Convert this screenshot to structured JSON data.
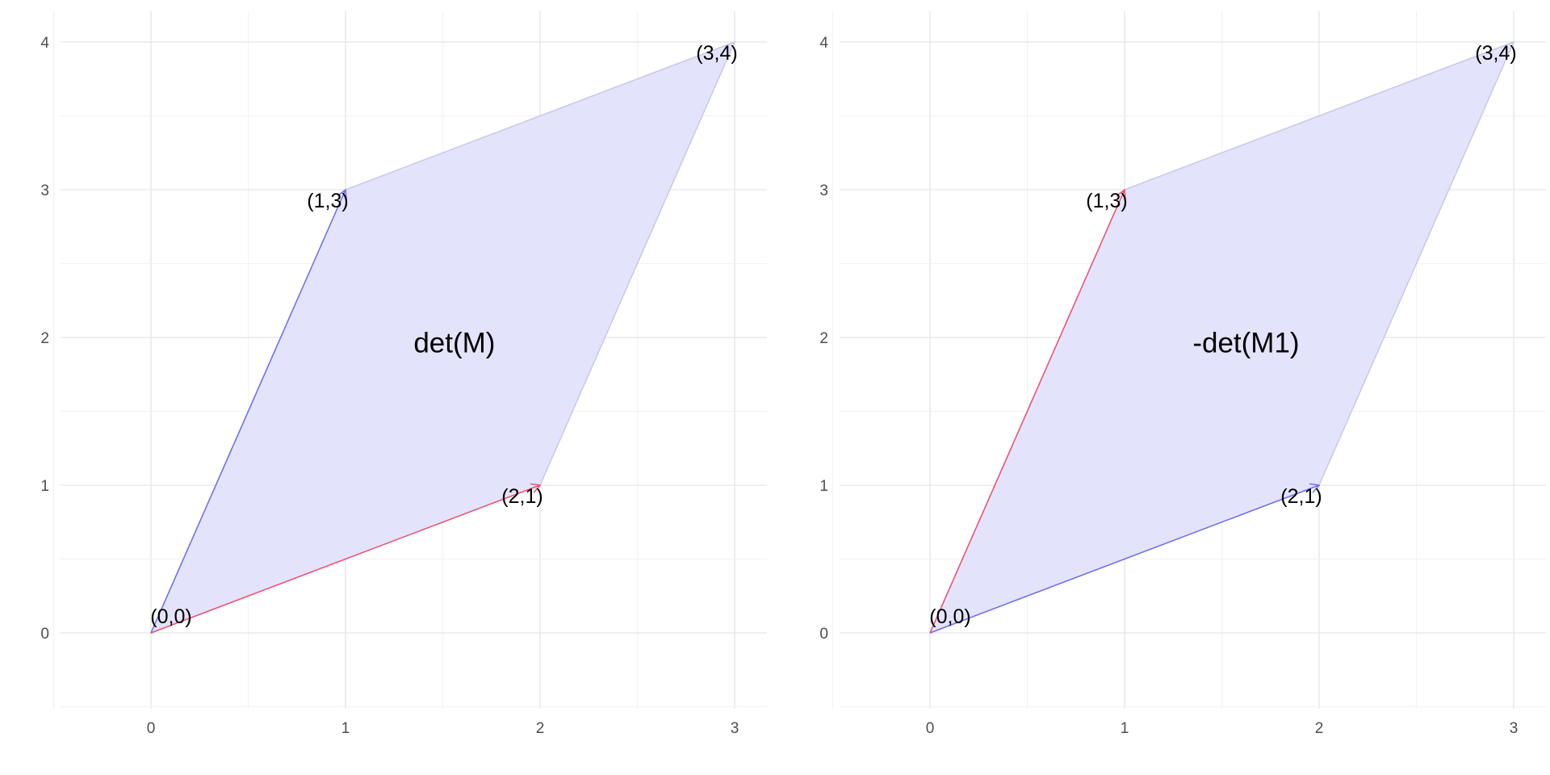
{
  "chart_data": [
    {
      "type": "vector-plot",
      "xlim": [
        -0.5,
        3.15
      ],
      "ylim": [
        -0.5,
        4.2
      ],
      "x_ticks": [
        "0",
        "1",
        "2",
        "3"
      ],
      "y_ticks": [
        "0",
        "1",
        "2",
        "3",
        "4"
      ],
      "grid": true,
      "parallelogram": [
        [
          0,
          0
        ],
        [
          2,
          1
        ],
        [
          3,
          4
        ],
        [
          1,
          3
        ]
      ],
      "fill_color": "#e3e3fb",
      "vectors": [
        {
          "from": [
            0,
            0
          ],
          "to": [
            2,
            1
          ],
          "color": "#f0506e"
        },
        {
          "from": [
            0,
            0
          ],
          "to": [
            1,
            3
          ],
          "color": "#6e6ef0"
        }
      ],
      "point_labels": [
        {
          "text": "(0,0)",
          "x": 0,
          "y": 0
        },
        {
          "text": "(2,1)",
          "x": 2,
          "y": 1
        },
        {
          "text": "(1,3)",
          "x": 1,
          "y": 3
        },
        {
          "text": "(3,4)",
          "x": 3,
          "y": 4
        }
      ],
      "area_label": {
        "text": "det(M)",
        "x": 1.35,
        "y": 1.9
      }
    },
    {
      "type": "vector-plot",
      "xlim": [
        -0.5,
        3.15
      ],
      "ylim": [
        -0.5,
        4.2
      ],
      "x_ticks": [
        "0",
        "1",
        "2",
        "3"
      ],
      "y_ticks": [
        "0",
        "1",
        "2",
        "3",
        "4"
      ],
      "grid": true,
      "parallelogram": [
        [
          0,
          0
        ],
        [
          2,
          1
        ],
        [
          3,
          4
        ],
        [
          1,
          3
        ]
      ],
      "fill_color": "#e3e3fb",
      "vectors": [
        {
          "from": [
            0,
            0
          ],
          "to": [
            2,
            1
          ],
          "color": "#6e6ef0"
        },
        {
          "from": [
            0,
            0
          ],
          "to": [
            1,
            3
          ],
          "color": "#f0506e"
        }
      ],
      "point_labels": [
        {
          "text": "(0,0)",
          "x": 0,
          "y": 0
        },
        {
          "text": "(2,1)",
          "x": 2,
          "y": 1
        },
        {
          "text": "(1,3)",
          "x": 1,
          "y": 3
        },
        {
          "text": "(3,4)",
          "x": 3,
          "y": 4
        }
      ],
      "area_label": {
        "text": "-det(M1)",
        "x": 1.35,
        "y": 1.9
      }
    }
  ]
}
